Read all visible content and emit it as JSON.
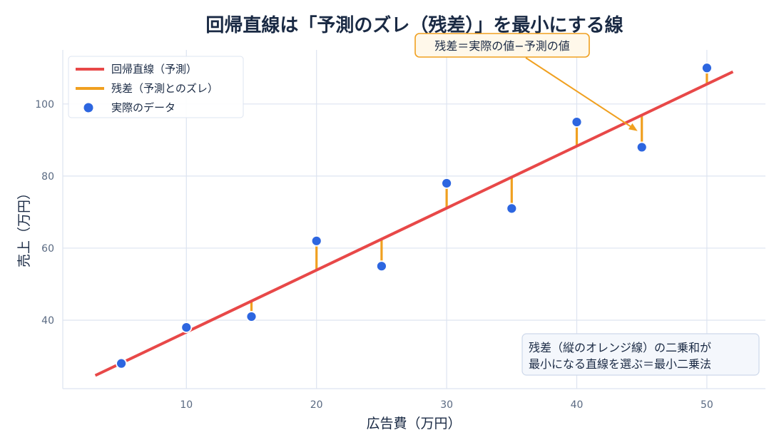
{
  "chart_data": {
    "type": "scatter",
    "title": "回帰直線は「予測のズレ（残差）」を最小にする線",
    "xlabel": "広告費（万円）",
    "ylabel": "売上（万円）",
    "xlim": [
      0.5,
      54.5
    ],
    "ylim": [
      21,
      115
    ],
    "x_ticks": [
      10,
      20,
      30,
      40,
      50
    ],
    "y_ticks": [
      40,
      60,
      80,
      100
    ],
    "grid": true,
    "legend_position": "top-left",
    "legend": {
      "line": "回帰直線（予測）",
      "residual": "残差（予測とのズレ）",
      "points": "実際のデータ"
    },
    "regression_line": {
      "x_start": 3,
      "x_end": 52,
      "slope": 1.72,
      "intercept": 19.5
    },
    "series": [
      {
        "name": "実際のデータ",
        "x": [
          5,
          10,
          15,
          20,
          25,
          30,
          35,
          40,
          45,
          50
        ],
        "y": [
          28,
          38,
          41,
          62,
          55,
          78,
          71,
          95,
          88,
          110
        ]
      }
    ],
    "annotation": {
      "text": "残差＝実際の値−予測の値",
      "target_x": 45,
      "target_y": 92.5
    },
    "note_lines": [
      "残差（縦のオレンジ線）の二乗和が",
      "最小になる直線を選ぶ＝最小二乗法"
    ],
    "colors": {
      "line": "#e84848",
      "residual": "#f0a020",
      "points": "#2d66e0",
      "grid": "#dde4f0",
      "text": "#1a2a44",
      "tick": "#5a6a82"
    }
  }
}
